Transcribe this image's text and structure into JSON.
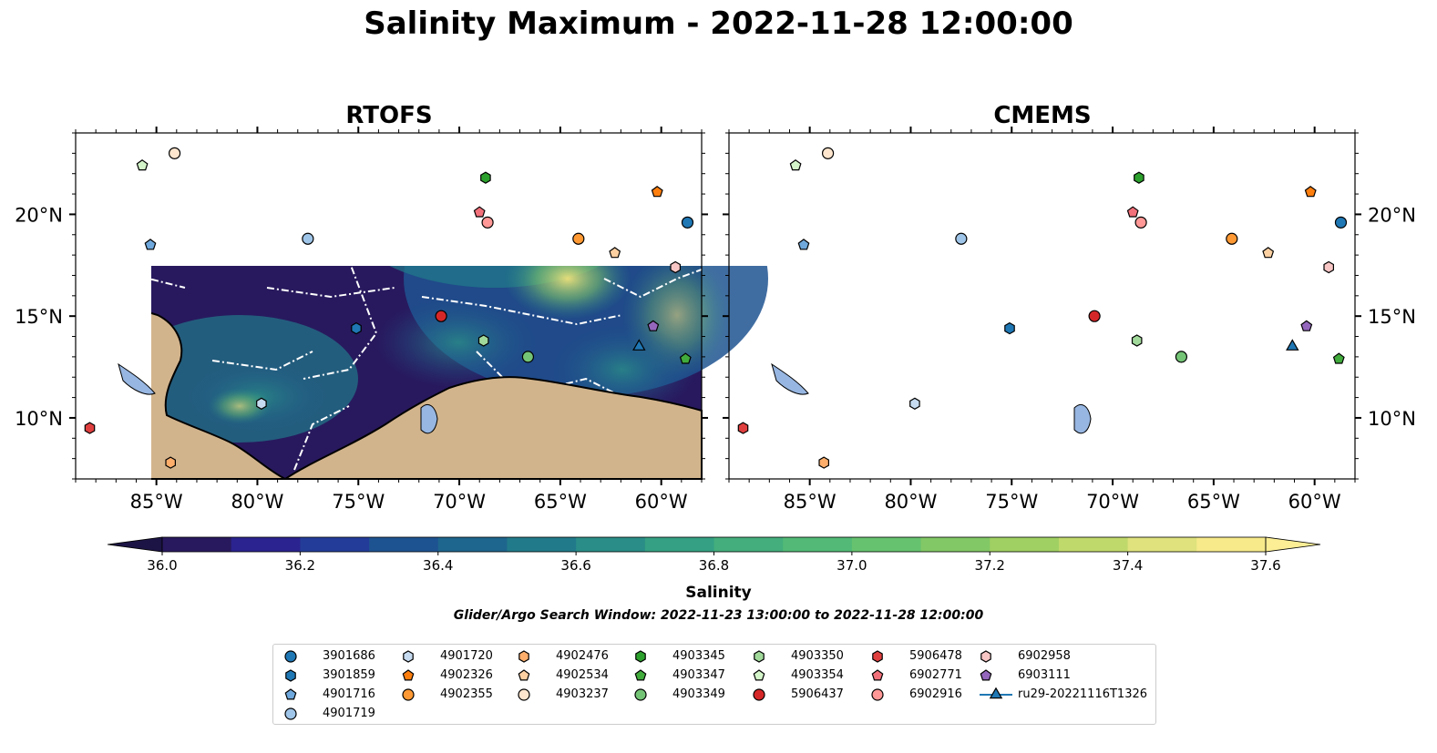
{
  "title": "Salinity Maximum - 2022-11-28 12:00:00",
  "panels": [
    {
      "id": "rtofs",
      "title": "RTOFS"
    },
    {
      "id": "cmems",
      "title": "CMEMS"
    }
  ],
  "map": {
    "lon_range": [
      -89,
      -58
    ],
    "lat_range": [
      7,
      24
    ],
    "lon_ticks": [
      "85°W",
      "80°W",
      "75°W",
      "70°W",
      "65°W",
      "60°W"
    ],
    "lat_ticks": [
      "20°N",
      "15°N",
      "10°N"
    ],
    "land_color": "#d2b48c",
    "lake_color": "#97b6e1"
  },
  "colorbar": {
    "label": "Salinity",
    "min": 36.0,
    "max": 37.6,
    "step": 0.1,
    "ticks": [
      "36.0",
      "36.2",
      "36.4",
      "36.6",
      "36.8",
      "37.0",
      "37.2",
      "37.4",
      "37.6"
    ],
    "colors": [
      "#28195e",
      "#2b238f",
      "#233c99",
      "#1e5391",
      "#1e668d",
      "#217a8a",
      "#2a8d87",
      "#35a083",
      "#44ae7c",
      "#52ba76",
      "#66c26f",
      "#82c866",
      "#a0d063",
      "#c0d96b",
      "#dfe27d",
      "#f6ea8b"
    ],
    "under_color": "#1c1444",
    "over_color": "#fbee95"
  },
  "search_window": "Glider/Argo Search Window: 2022-11-23 13:00:00 to 2022-11-28 12:00:00",
  "legend": [
    {
      "label": "3901686",
      "marker": "circle",
      "color": "#1f77b4"
    },
    {
      "label": "3901859",
      "marker": "hexagon",
      "color": "#1f77b4"
    },
    {
      "label": "4901716",
      "marker": "pentagon",
      "color": "#6fa8dc"
    },
    {
      "label": "4901719",
      "marker": "circle",
      "color": "#9fc5e8"
    },
    {
      "label": "4901720",
      "marker": "hexagon",
      "color": "#c6dbef"
    },
    {
      "label": "4902326",
      "marker": "pentagon",
      "color": "#ff7f0e"
    },
    {
      "label": "4902355",
      "marker": "circle",
      "color": "#ff9933"
    },
    {
      "label": "4902476",
      "marker": "hexagon",
      "color": "#fdae6b"
    },
    {
      "label": "4902534",
      "marker": "pentagon",
      "color": "#fdd0a2"
    },
    {
      "label": "4903237",
      "marker": "circle",
      "color": "#fee6ce"
    },
    {
      "label": "4903345",
      "marker": "hexagon",
      "color": "#2ca02c"
    },
    {
      "label": "4903347",
      "marker": "pentagon",
      "color": "#41ab3c"
    },
    {
      "label": "4903349",
      "marker": "circle",
      "color": "#74c476"
    },
    {
      "label": "4903350",
      "marker": "hexagon",
      "color": "#a1d99b"
    },
    {
      "label": "4903354",
      "marker": "pentagon",
      "color": "#d4f5c9"
    },
    {
      "label": "5906437",
      "marker": "circle",
      "color": "#d62728"
    },
    {
      "label": "5906478",
      "marker": "hexagon",
      "color": "#e03f3f"
    },
    {
      "label": "6902771",
      "marker": "pentagon",
      "color": "#f2707a"
    },
    {
      "label": "6902916",
      "marker": "circle",
      "color": "#ff9896"
    },
    {
      "label": "6902958",
      "marker": "hexagon",
      "color": "#f7c6c5"
    },
    {
      "label": "6903111",
      "marker": "pentagon",
      "color": "#9467bd"
    },
    {
      "label": "ru29-20221116T1326",
      "marker": "triangle",
      "color": "#1f77b4"
    }
  ],
  "platforms": [
    {
      "id": "3901686",
      "lon": -58.7,
      "lat": 19.6
    },
    {
      "id": "3901859",
      "lon": -75.1,
      "lat": 14.4
    },
    {
      "id": "4901716",
      "lon": -85.3,
      "lat": 18.5
    },
    {
      "id": "4901719",
      "lon": -77.5,
      "lat": 18.8
    },
    {
      "id": "4901720",
      "lon": -79.8,
      "lat": 10.7
    },
    {
      "id": "4902326",
      "lon": -60.2,
      "lat": 21.1
    },
    {
      "id": "4902355",
      "lon": -64.1,
      "lat": 18.8
    },
    {
      "id": "4902476",
      "lon": -84.3,
      "lat": 7.8
    },
    {
      "id": "4902534",
      "lon": -62.3,
      "lat": 18.1
    },
    {
      "id": "4903237",
      "lon": -84.1,
      "lat": 23.0
    },
    {
      "id": "4903345",
      "lon": -68.7,
      "lat": 21.8
    },
    {
      "id": "4903347",
      "lon": -58.8,
      "lat": 12.9
    },
    {
      "id": "4903349",
      "lon": -66.6,
      "lat": 13.0
    },
    {
      "id": "4903350",
      "lon": -68.8,
      "lat": 13.8
    },
    {
      "id": "4903354",
      "lon": -85.7,
      "lat": 22.4
    },
    {
      "id": "5906437",
      "lon": -70.9,
      "lat": 15.0
    },
    {
      "id": "5906478",
      "lon": -88.3,
      "lat": 9.5
    },
    {
      "id": "6902771",
      "lon": -69.0,
      "lat": 20.1
    },
    {
      "id": "6902916",
      "lon": -68.6,
      "lat": 19.6
    },
    {
      "id": "6902958",
      "lon": -59.3,
      "lat": 17.4
    },
    {
      "id": "6903111",
      "lon": -60.4,
      "lat": 14.5
    },
    {
      "id": "ru29-20221116T1326",
      "lon": -61.1,
      "lat": 13.5
    }
  ]
}
